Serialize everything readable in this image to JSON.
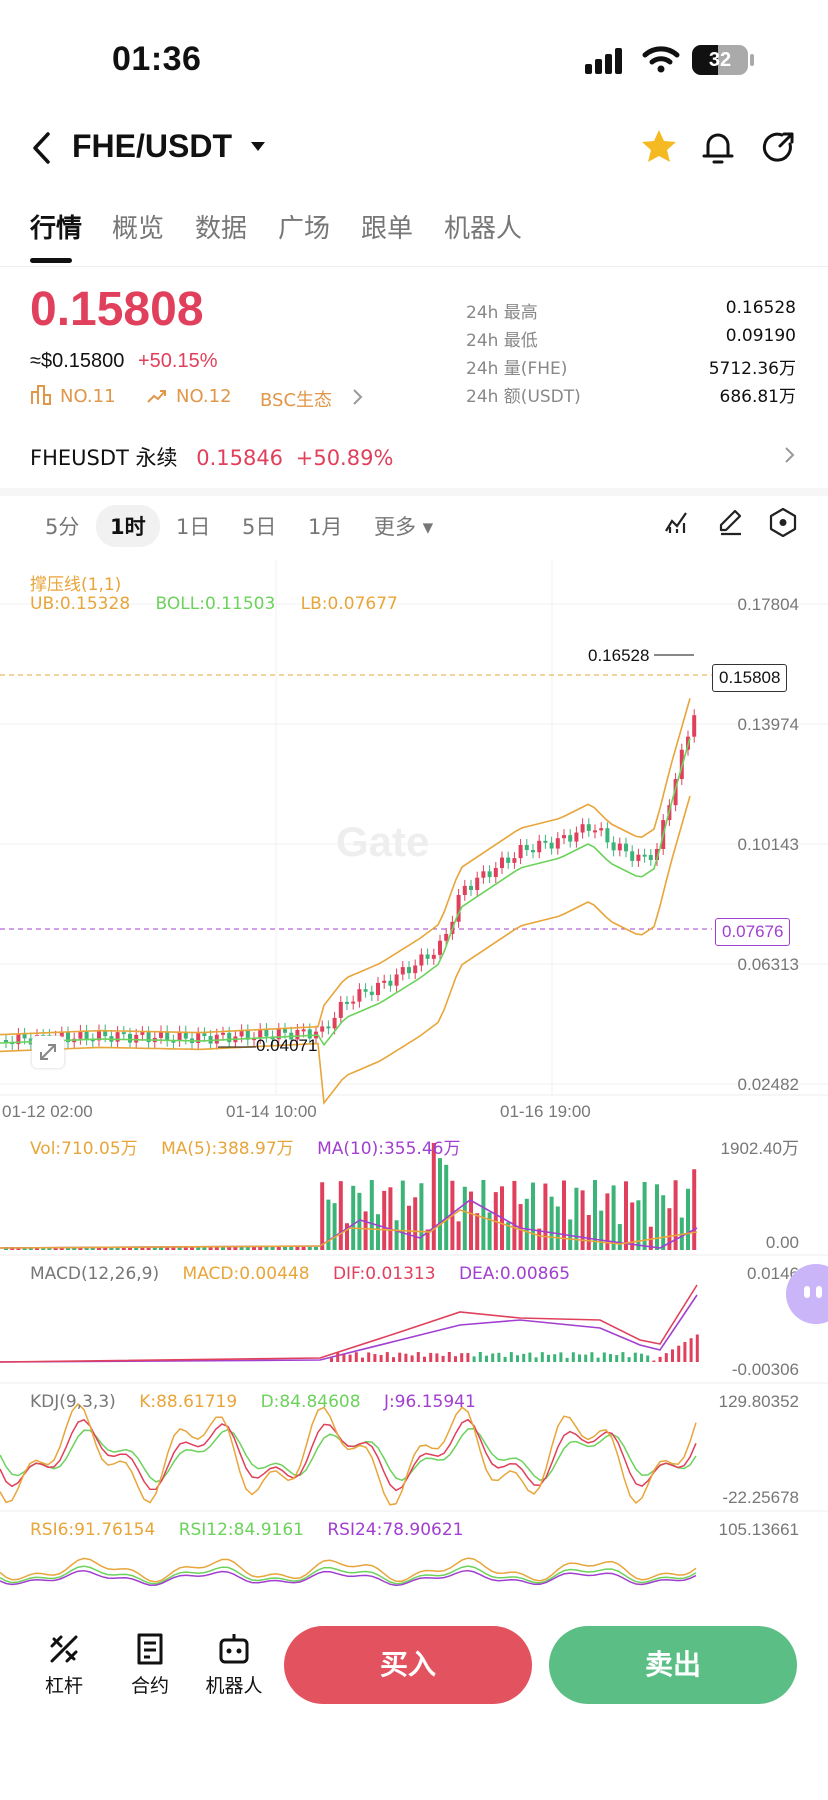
{
  "status": {
    "time": "01:36",
    "battery": "32"
  },
  "header": {
    "pair": "FHE/USDT"
  },
  "tabs": [
    {
      "label": "行情",
      "active": true
    },
    {
      "label": "概览"
    },
    {
      "label": "数据"
    },
    {
      "label": "广场"
    },
    {
      "label": "跟单"
    },
    {
      "label": "机器人"
    }
  ],
  "ticker": {
    "price": "0.15808",
    "usd": "≈$0.15800",
    "change": "+50.15%",
    "rank1": "NO.11",
    "rank2": "NO.12",
    "eco": "BSC生态",
    "stats": [
      {
        "label": "24h  最高",
        "value": "0.16528"
      },
      {
        "label": "24h  最低",
        "value": "0.09190"
      },
      {
        "label": "24h  量(FHE)",
        "value": "5712.36万"
      },
      {
        "label": "24h  额(USDT)",
        "value": "686.81万"
      }
    ]
  },
  "perpetual": {
    "name": "FHEUSDT 永续",
    "price": "0.15846",
    "change": "+50.89%"
  },
  "intervals": [
    {
      "label": "5分"
    },
    {
      "label": "1时",
      "active": true
    },
    {
      "label": "1日"
    },
    {
      "label": "5日"
    },
    {
      "label": "1月"
    },
    {
      "label": "更多 ▾"
    }
  ],
  "main_chart": {
    "indicator": "撑压线(1,1)",
    "ub": "UB:0.15328",
    "boll": "BOLL:0.11503",
    "lb": "LB:0.07677",
    "y_labels": [
      "0.17804",
      "0.13974",
      "0.10143",
      "0.06313",
      "0.02482"
    ],
    "current_price_tag": "0.15808",
    "lb_tag": "0.07676",
    "high_label": "0.16528",
    "low_label": "0.04071",
    "x_labels": [
      "01-12 02:00",
      "01-14 10:00",
      "01-16 19:00"
    ],
    "watermark": "Gate"
  },
  "vol_panel": {
    "vol": "Vol:710.05万",
    "ma5": "MA(5):388.97万",
    "ma10": "MA(10):355.46万",
    "max": "1902.40万",
    "min": "0.00"
  },
  "macd_panel": {
    "name": "MACD(12,26,9)",
    "macd": "MACD:0.00448",
    "dif": "DIF:0.01313",
    "dea": "DEA:0.00865",
    "max": "0.0146",
    "min": "-0.00306"
  },
  "kdj_panel": {
    "name": "KDJ(9,3,3)",
    "k": "K:88.61719",
    "d": "D:84.84608",
    "j": "J:96.15941",
    "max": "129.80352",
    "min": "-22.25678"
  },
  "rsi_panel": {
    "rsi6": "RSI6:91.76154",
    "rsi12": "RSI12:84.9161",
    "rsi24": "RSI24:78.90621",
    "max": "105.13661"
  },
  "bottom_bar": {
    "leverage": "杠杆",
    "contract": "合约",
    "robot": "机器人",
    "buy": "买入",
    "sell": "卖出"
  },
  "colors": {
    "up": "#e0405b",
    "down": "#3cb478",
    "buy": "#e2525f",
    "sell": "#5bbf85",
    "orange": "#e8a53a",
    "green": "#6cd25c",
    "purple": "#a13fd0"
  }
}
